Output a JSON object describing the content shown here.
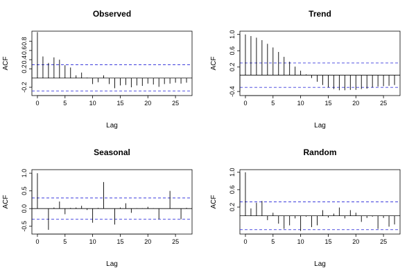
{
  "chart_data": [
    {
      "type": "bar",
      "title": "Observed",
      "xlabel": "Lag",
      "ylabel": "ACF",
      "xlim": [
        -1,
        28
      ],
      "ylim": [
        -0.38,
        1.02
      ],
      "xticks": [
        0,
        5,
        10,
        15,
        20,
        25
      ],
      "yticks": [
        -0.2,
        0.2,
        0.4,
        0.6,
        0.8
      ],
      "ci": [
        -0.28,
        0.29
      ],
      "lags": [
        0,
        1,
        2,
        3,
        4,
        5,
        6,
        7,
        8,
        9,
        10,
        11,
        12,
        13,
        14,
        15,
        16,
        17,
        18,
        19,
        20,
        21,
        22,
        23,
        24,
        25,
        26,
        27
      ],
      "values": [
        1.0,
        0.47,
        0.33,
        0.45,
        0.4,
        0.28,
        0.23,
        0.06,
        0.12,
        0.01,
        -0.13,
        -0.09,
        0.06,
        -0.13,
        -0.22,
        -0.16,
        -0.15,
        -0.2,
        -0.16,
        -0.17,
        -0.12,
        -0.14,
        -0.19,
        -0.13,
        -0.12,
        -0.1,
        -0.12,
        -0.1
      ]
    },
    {
      "type": "bar",
      "title": "Trend",
      "xlabel": "Lag",
      "ylabel": "ACF",
      "xlim": [
        -1,
        28
      ],
      "ylim": [
        -0.5,
        1.08
      ],
      "xticks": [
        0,
        5,
        10,
        15,
        20,
        25
      ],
      "yticks": [
        -0.4,
        0.2,
        0.6,
        1.0
      ],
      "ci": [
        -0.3,
        0.3
      ],
      "lags": [
        0,
        1,
        2,
        3,
        4,
        5,
        6,
        7,
        8,
        9,
        10,
        11,
        12,
        13,
        14,
        15,
        16,
        17,
        18,
        19,
        20,
        21,
        22,
        23,
        24,
        25,
        26,
        27
      ],
      "values": [
        1.0,
        0.96,
        0.92,
        0.86,
        0.77,
        0.68,
        0.57,
        0.45,
        0.33,
        0.21,
        0.11,
        0.02,
        -0.07,
        -0.16,
        -0.24,
        -0.3,
        -0.34,
        -0.37,
        -0.37,
        -0.36,
        -0.36,
        -0.34,
        -0.33,
        -0.3,
        -0.28,
        -0.27,
        -0.26,
        -0.24
      ]
    },
    {
      "type": "bar",
      "title": "Seasonal",
      "xlabel": "Lag",
      "ylabel": "ACF",
      "xlim": [
        -1,
        28
      ],
      "ylim": [
        -0.72,
        1.1
      ],
      "xticks": [
        0,
        5,
        10,
        15,
        20,
        25
      ],
      "yticks": [
        -0.5,
        0.0,
        0.5,
        1.0
      ],
      "ci": [
        -0.3,
        0.3
      ],
      "lags": [
        0,
        1,
        2,
        3,
        4,
        5,
        6,
        7,
        8,
        9,
        10,
        11,
        12,
        13,
        14,
        15,
        16,
        17,
        18,
        19,
        20,
        21,
        22,
        23,
        24,
        25,
        26,
        27
      ],
      "values": [
        1.0,
        0.0,
        -0.6,
        0.03,
        0.2,
        -0.16,
        0.02,
        0.03,
        0.08,
        -0.04,
        -0.4,
        0.02,
        0.75,
        0.0,
        -0.45,
        0.03,
        0.15,
        -0.12,
        0.01,
        0.01,
        0.05,
        0.01,
        -0.3,
        0.0,
        0.5,
        0.0,
        -0.3,
        0.02
      ]
    },
    {
      "type": "bar",
      "title": "Random",
      "xlabel": "Lag",
      "ylabel": "ACF",
      "xlim": [
        -1,
        28
      ],
      "ylim": [
        -0.42,
        1.06
      ],
      "xticks": [
        0,
        5,
        10,
        15,
        20,
        25
      ],
      "yticks": [
        0.2,
        0.6,
        1.0
      ],
      "ci": [
        -0.32,
        0.32
      ],
      "lags": [
        0,
        1,
        2,
        3,
        4,
        5,
        6,
        7,
        8,
        9,
        10,
        11,
        12,
        13,
        14,
        15,
        16,
        17,
        18,
        19,
        20,
        21,
        22,
        23,
        24,
        25,
        26,
        27
      ],
      "values": [
        1.0,
        0.17,
        0.3,
        0.34,
        -0.1,
        0.07,
        -0.18,
        -0.3,
        -0.22,
        -0.06,
        -0.35,
        -0.02,
        -0.26,
        -0.22,
        0.13,
        -0.04,
        0.05,
        0.19,
        -0.06,
        0.13,
        0.07,
        -0.14,
        -0.05,
        -0.02,
        -0.3,
        -0.05,
        -0.25,
        -0.2
      ]
    }
  ],
  "colors": {
    "ci_line": "#3b3bdd",
    "bars": "#000000",
    "zero_line": "#000000"
  }
}
